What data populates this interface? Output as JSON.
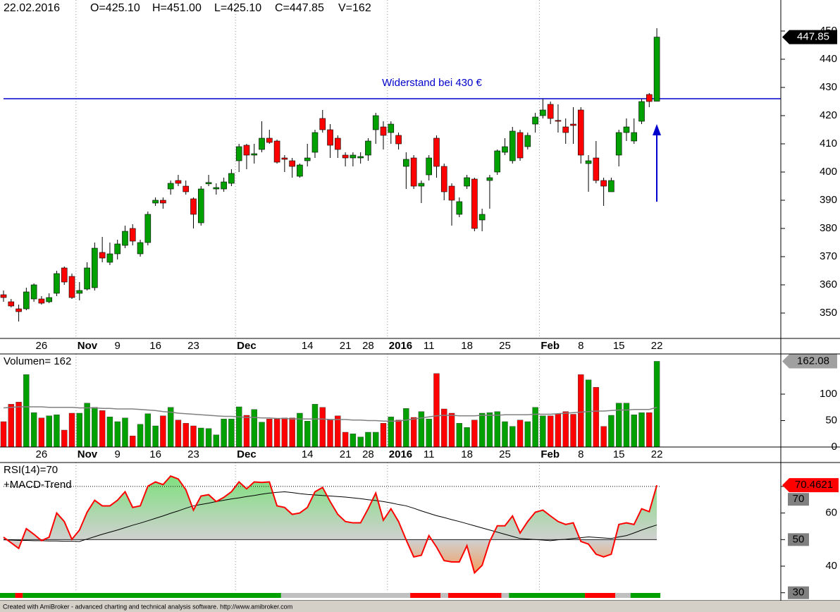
{
  "chart_data": [
    {
      "type": "candlestick",
      "header": [
        "22.02.2016",
        "O=425.10",
        "H=451.00",
        "L=425.10",
        "C=447.85",
        "V=162"
      ],
      "categories": [
        null,
        null,
        null,
        null,
        null,
        "26",
        null,
        null,
        null,
        null,
        "Nov",
        null,
        null,
        null,
        null,
        "9",
        null,
        null,
        null,
        null,
        "16",
        null,
        null,
        null,
        null,
        "23",
        null,
        null,
        null,
        null,
        null,
        "Dec",
        null,
        null,
        null,
        null,
        null,
        null,
        null,
        null,
        "14",
        null,
        null,
        null,
        null,
        "21",
        null,
        null,
        "28",
        null,
        null,
        "2016",
        null,
        null,
        null,
        null,
        "11",
        null,
        null,
        null,
        null,
        "18",
        null,
        null,
        null,
        null,
        "25",
        null,
        null,
        null,
        null,
        "Feb",
        null,
        null,
        null,
        null,
        "8",
        null,
        null,
        null,
        null,
        "15",
        null,
        null,
        null,
        null,
        "22"
      ],
      "open": [
        356.5,
        354,
        351.5,
        351.5,
        355,
        355,
        354,
        357,
        366,
        363,
        357,
        358.5,
        359,
        371.5,
        368,
        371,
        374,
        380,
        371,
        375,
        389,
        390,
        394,
        397,
        395,
        390.5,
        382,
        395.8,
        394,
        394,
        396,
        404,
        409.5,
        406,
        408,
        412,
        411,
        405,
        404,
        398.5,
        404,
        407,
        419,
        415,
        412,
        406,
        405,
        405,
        406,
        415,
        416,
        414,
        413,
        402,
        405,
        395,
        399,
        412,
        402,
        395,
        385,
        395,
        397.5,
        383,
        397,
        400,
        407,
        404,
        414,
        409,
        417,
        420,
        424,
        418.3,
        416,
        417,
        422,
        403,
        405,
        397,
        393,
        406,
        414,
        411,
        418,
        427.5,
        425.1
      ],
      "high": [
        358,
        355,
        353,
        359,
        360.5,
        356,
        357,
        365,
        366.5,
        364,
        361,
        368,
        375,
        377,
        375,
        376,
        381,
        381.5,
        376,
        386,
        391,
        391,
        397,
        399,
        397,
        391,
        395,
        399,
        396,
        398,
        401,
        410,
        410,
        410,
        418,
        415,
        411.5,
        406,
        405,
        403,
        410,
        415,
        422,
        417,
        413,
        407,
        407,
        407,
        412,
        421,
        418,
        418,
        414,
        407,
        406,
        397,
        406,
        413,
        403,
        396,
        391,
        399,
        398,
        387,
        399,
        408,
        412,
        416,
        415,
        414,
        421,
        426,
        425,
        424,
        419,
        423,
        423,
        406,
        411,
        398,
        398,
        415,
        419,
        419,
        426,
        428,
        451
      ],
      "low": [
        354,
        352,
        347,
        351,
        354,
        353,
        353.5,
        356,
        360,
        355,
        354.5,
        358,
        358,
        368,
        367,
        369,
        373,
        374,
        370,
        374,
        388,
        387,
        392,
        395,
        392,
        380,
        381,
        395,
        392,
        393,
        395,
        400,
        401,
        403,
        407,
        410,
        403,
        400,
        398,
        398,
        402,
        405,
        414,
        405,
        405,
        402,
        402,
        403,
        404,
        410,
        408,
        410,
        408,
        394,
        394,
        389,
        397,
        398,
        390,
        381,
        384,
        394,
        379,
        379,
        387,
        399,
        406,
        403,
        404,
        408,
        414,
        419,
        417,
        414,
        410,
        410,
        403,
        393,
        396,
        388,
        393,
        402,
        411,
        410,
        417,
        423,
        425.1
      ],
      "close": [
        355.5,
        352.5,
        350.5,
        357.5,
        360,
        353.5,
        355.5,
        364,
        361,
        355.5,
        358,
        366,
        373,
        369.5,
        371,
        374.5,
        379,
        375.5,
        375,
        385,
        390,
        389,
        396,
        396,
        393,
        385,
        394,
        396.3,
        394.5,
        396.5,
        399.5,
        409,
        406,
        406.5,
        412,
        410.5,
        403.5,
        404.5,
        402,
        402.5,
        405,
        414,
        415,
        409.5,
        408,
        405,
        406,
        405.5,
        411,
        420,
        413,
        417,
        410,
        404.5,
        395,
        396,
        405,
        402,
        393,
        390,
        389.5,
        398,
        380,
        385,
        398,
        407.5,
        409,
        414.5,
        405,
        413,
        419.5,
        422,
        419,
        418,
        414,
        416.5,
        406,
        404,
        397,
        395,
        397,
        414,
        416,
        414,
        425,
        425,
        447.85
      ],
      "up_color": "#00a000",
      "down_color": "#ff0000",
      "ylim": [
        341,
        461
      ],
      "yticks": [
        350,
        360,
        370,
        380,
        390,
        400,
        410,
        420,
        430,
        440,
        450
      ],
      "vgrid": [
        10,
        31,
        51,
        71
      ],
      "hline": 426,
      "hline_color": "#0000cc",
      "annotation": "Widerstand bei 430 €"
    },
    {
      "type": "bar",
      "title": "Volumen= 162",
      "values": [
        48,
        81,
        85,
        137,
        65,
        55,
        59,
        61,
        32,
        64,
        64,
        83,
        75,
        69,
        57,
        48,
        55,
        21,
        43,
        63,
        40,
        59,
        75,
        51,
        45,
        40,
        36,
        35,
        23,
        53,
        53,
        76,
        60,
        71,
        47,
        53,
        53,
        55,
        55,
        64,
        49,
        81,
        75,
        51,
        59,
        28,
        25,
        19,
        28,
        28,
        45,
        57,
        51,
        73,
        56,
        67,
        53,
        139,
        72,
        64,
        45,
        37,
        51,
        64,
        65,
        67,
        48,
        39,
        51,
        48,
        75,
        59,
        59,
        63,
        67,
        62,
        137,
        127,
        113,
        39,
        60,
        83,
        83,
        61,
        65,
        65,
        162.08
      ],
      "average": [
        74,
        75,
        76,
        76,
        76,
        76,
        75,
        75,
        75,
        75,
        74,
        74,
        74,
        73,
        73,
        72,
        72,
        72,
        71,
        70,
        69,
        67,
        66,
        64,
        63,
        62,
        61,
        60,
        59,
        58,
        58,
        57,
        56,
        56,
        55,
        55,
        54,
        54,
        53,
        53,
        53,
        53,
        53,
        52,
        52,
        52,
        51,
        51,
        50,
        50,
        49,
        49,
        49,
        51,
        53,
        55,
        57,
        59,
        60,
        60,
        59,
        59,
        59,
        60,
        60,
        60,
        61,
        61,
        61,
        61,
        62,
        62,
        62,
        63,
        64,
        65,
        66,
        67,
        68,
        68,
        69,
        70,
        70,
        71,
        71,
        71,
        75
      ],
      "average_color": "#808080",
      "ylim": [
        0,
        176
      ],
      "yticks": [
        0,
        50,
        100
      ]
    },
    {
      "type": "line",
      "title": "RSI(14)=70",
      "subtitle": "+MACD-Trend",
      "values": [
        50.9,
        48.8,
        46.7,
        54.1,
        52,
        49.6,
        50.9,
        60,
        56.8,
        50.1,
        53.6,
        60.3,
        64.8,
        62.7,
        62.7,
        64.8,
        68,
        62.1,
        62.7,
        70.1,
        71.7,
        70.7,
        73.9,
        72.8,
        68.8,
        61.1,
        66.4,
        66.9,
        64.3,
        65.9,
        68,
        71.7,
        69.1,
        71.7,
        71.5,
        71.7,
        62.7,
        62.1,
        59.5,
        60,
        62.1,
        68,
        69.6,
        64.3,
        59.5,
        56.8,
        56.3,
        56.3,
        61.6,
        67.5,
        57.3,
        61.6,
        56.8,
        49.9,
        43.5,
        44.1,
        51.5,
        47.2,
        42.1,
        41.6,
        41.6,
        47.7,
        37.5,
        40.3,
        49.3,
        55.2,
        55.2,
        58.9,
        52.5,
        56.8,
        60.3,
        61.1,
        58.9,
        56.8,
        55.7,
        56.3,
        49.3,
        48.3,
        44.5,
        43.5,
        44.5,
        55.7,
        56.3,
        55.7,
        61.6,
        60.5,
        70.4621
      ],
      "color": "#ff0000",
      "average": [
        49.9,
        49.8,
        49.7,
        49.7,
        49.6,
        49.6,
        49.5,
        49.5,
        49.4,
        49.4,
        49.3,
        50.2,
        51.1,
        52,
        52.8,
        53.6,
        54.5,
        55.4,
        56.2,
        57.1,
        58,
        58.9,
        59.9,
        60.8,
        61.8,
        62.7,
        63.2,
        63.7,
        64.3,
        64.8,
        65.3,
        65.7,
        66.2,
        66.6,
        67.1,
        67.5,
        67.8,
        68,
        67.7,
        67.3,
        67,
        66.8,
        66.6,
        66.4,
        66.2,
        66,
        65.7,
        65.4,
        65,
        64.7,
        64.3,
        63.8,
        63.2,
        62.7,
        61.8,
        60.8,
        59.9,
        59,
        58.3,
        57.5,
        56.8,
        56,
        55.2,
        54.4,
        53.6,
        52.8,
        52,
        51.2,
        50.4,
        50.2,
        50,
        49.8,
        49.6,
        49.9,
        50.1,
        50.4,
        50.7,
        51,
        50.8,
        50.6,
        50.4,
        51,
        51.5,
        52.5,
        53.6,
        54.6,
        55.5
      ],
      "average_color": "#000000",
      "ylim": [
        27,
        79
      ],
      "yticks": [
        30,
        40,
        50,
        60,
        70
      ],
      "boxed": [
        30,
        50,
        70
      ],
      "hlines": [
        {
          "value": 50,
          "style": "solid"
        },
        {
          "value": 70,
          "style": "dotted"
        }
      ],
      "trend": [
        {
          "start": 0,
          "color": "#00a000"
        },
        {
          "start": 2,
          "color": "#ff0000"
        },
        {
          "start": 3,
          "color": "#00a000"
        },
        {
          "start": 37,
          "color": "#c0c0c0"
        },
        {
          "start": 54,
          "color": "#ff0000"
        },
        {
          "start": 58,
          "color": "#c0c0c0"
        },
        {
          "start": 59,
          "color": "#ff0000"
        },
        {
          "start": 66,
          "color": "#c0c0c0"
        },
        {
          "start": 67,
          "color": "#00a000"
        },
        {
          "start": 77,
          "color": "#ff0000"
        },
        {
          "start": 81,
          "color": "#c0c0c0"
        },
        {
          "start": 83,
          "color": "#00a000"
        }
      ]
    }
  ],
  "footer": "Created with AmiBroker - advanced charting and technical analysis software. http://www.amibroker.com"
}
